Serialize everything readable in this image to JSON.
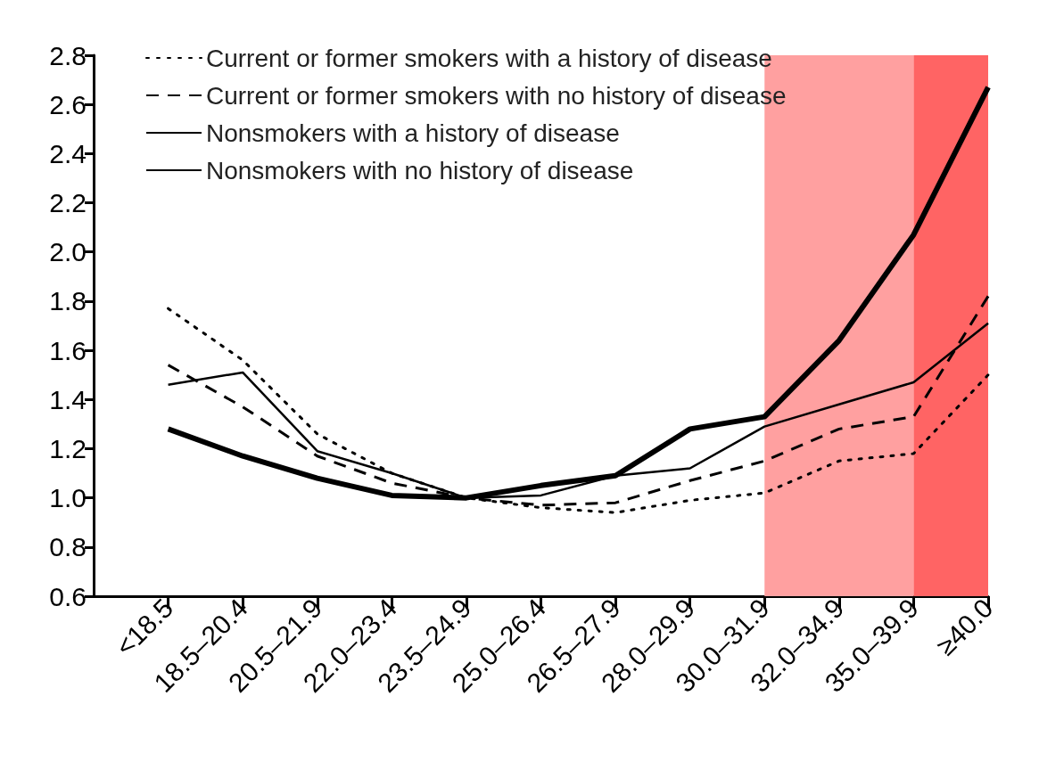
{
  "chart_data": {
    "type": "line",
    "categories": [
      "<18.5",
      "18.5–20.4",
      "20.5–21.9",
      "22.0–23.4",
      "23.5–24.9",
      "25.0–26.4",
      "26.5–27.9",
      "28.0–29.9",
      "30.0–31.9",
      "32.0–34.9",
      "35.0–39.9",
      "≥40.0"
    ],
    "series": [
      {
        "name": "Current or former smokers with a history of disease",
        "color": "#000000",
        "line_style": "dotted",
        "values": [
          1.77,
          1.56,
          1.26,
          1.1,
          1.0,
          0.96,
          0.94,
          0.99,
          1.02,
          1.15,
          1.18,
          1.5
        ]
      },
      {
        "name": "Current or former smokers with no history of disease",
        "color": "#000000",
        "line_style": "dashed",
        "values": [
          1.54,
          1.37,
          1.17,
          1.06,
          1.0,
          0.97,
          0.98,
          1.07,
          1.15,
          1.28,
          1.33,
          1.82
        ]
      },
      {
        "name": "Nonsmokers with a history of disease",
        "color": "#000000",
        "line_style": "solid",
        "values": [
          1.46,
          1.51,
          1.19,
          1.1,
          1.0,
          1.01,
          1.09,
          1.12,
          1.29,
          1.38,
          1.47,
          1.71
        ]
      },
      {
        "name": "Nonsmokers with no history of disease",
        "color": "#000000",
        "line_style": "solid",
        "values": [
          1.28,
          1.17,
          1.08,
          1.01,
          1.0,
          1.05,
          1.09,
          1.28,
          1.33,
          1.64,
          2.07,
          2.67
        ]
      }
    ],
    "ylim": [
      0.6,
      2.8
    ],
    "yticks": [
      {
        "value": 0.6,
        "label": "0.6"
      },
      {
        "value": 0.8,
        "label": "0.8"
      },
      {
        "value": 1.0,
        "label": "1.0"
      },
      {
        "value": 1.2,
        "label": "1.2"
      },
      {
        "value": 1.4,
        "label": "1.4"
      },
      {
        "value": 1.6,
        "label": "1.6"
      },
      {
        "value": 1.8,
        "label": "1.8"
      },
      {
        "value": 2.0,
        "label": "2.0"
      },
      {
        "value": 2.2,
        "label": "2.2"
      },
      {
        "value": 2.4,
        "label": "2.4"
      },
      {
        "value": 2.6,
        "label": "2.6"
      },
      {
        "value": 2.8,
        "label": "2.8"
      }
    ],
    "bands": [
      {
        "axis": "x",
        "from": "30.0–31.9",
        "to": "35.0–39.9",
        "color": "#ffa0a0"
      },
      {
        "axis": "x",
        "from": "35.0–39.9",
        "to": "≥40.0",
        "color": "#ff6464"
      }
    ],
    "grid": false,
    "legend": "top left",
    "marker": "none"
  }
}
